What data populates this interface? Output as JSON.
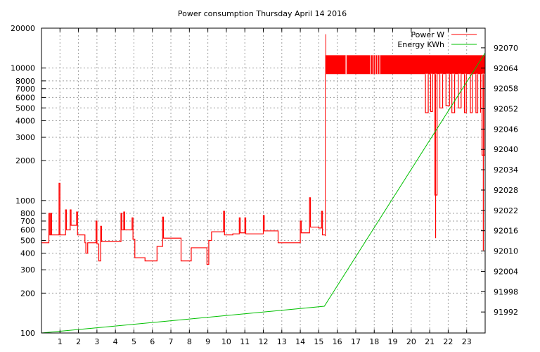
{
  "chart_data": {
    "type": "line",
    "title": "Power consumption Thursday April 14 2016",
    "xlabel": "",
    "ylabel": "",
    "xlim": [
      0,
      24
    ],
    "ylim": [
      100,
      20000
    ],
    "y_scale": "log",
    "y2lim": [
      91985.8,
      92075.8
    ],
    "grid": true,
    "legend_position": "top-right",
    "x_ticks": [
      "1",
      "2",
      "3",
      "4",
      "5",
      "6",
      "7",
      "8",
      "9",
      "10",
      "11",
      "12",
      "13",
      "14",
      "15",
      "16",
      "17",
      "18",
      "19",
      "20",
      "21",
      "22",
      "23"
    ],
    "y_ticks": [
      100,
      200,
      300,
      400,
      500,
      600,
      700,
      800,
      1000,
      2000,
      3000,
      4000,
      5000,
      6000,
      7000,
      8000,
      10000,
      20000
    ],
    "y_tick_labels": [
      "100",
      "200",
      "300",
      "400",
      "500",
      "600",
      "700",
      "800",
      "1000",
      "2000",
      "3000",
      "4000",
      "5000",
      "6000",
      "7000",
      "8000",
      "10000",
      "20000"
    ],
    "y2_ticks": [
      "91992",
      "91998",
      "92004",
      "92010",
      "92016",
      "92022",
      "92028",
      "92034",
      "92040",
      "92046",
      "92052",
      "92058",
      "92064",
      "92070"
    ],
    "series": [
      {
        "name": "Power W",
        "color": "#ff0000",
        "steps": [
          [
            0,
            480
          ],
          [
            0.4,
            800
          ],
          [
            0.45,
            550
          ],
          [
            0.5,
            800
          ],
          [
            0.55,
            550
          ],
          [
            0.95,
            1350
          ],
          [
            1.0,
            550
          ],
          [
            1.3,
            850
          ],
          [
            1.35,
            600
          ],
          [
            1.55,
            850
          ],
          [
            1.6,
            650
          ],
          [
            1.9,
            820
          ],
          [
            1.95,
            550
          ],
          [
            2.35,
            480
          ],
          [
            2.4,
            400
          ],
          [
            2.5,
            480
          ],
          [
            2.95,
            700
          ],
          [
            3.0,
            470
          ],
          [
            3.1,
            350
          ],
          [
            3.2,
            640
          ],
          [
            3.25,
            490
          ],
          [
            4.3,
            800
          ],
          [
            4.35,
            600
          ],
          [
            4.45,
            820
          ],
          [
            4.5,
            600
          ],
          [
            4.9,
            740
          ],
          [
            4.95,
            510
          ],
          [
            5.05,
            370
          ],
          [
            5.6,
            350
          ],
          [
            6.25,
            450
          ],
          [
            6.55,
            750
          ],
          [
            6.6,
            520
          ],
          [
            7.55,
            350
          ],
          [
            8.1,
            440
          ],
          [
            8.95,
            330
          ],
          [
            9.05,
            500
          ],
          [
            9.2,
            580
          ],
          [
            9.85,
            830
          ],
          [
            9.9,
            550
          ],
          [
            10.35,
            560
          ],
          [
            10.7,
            740
          ],
          [
            10.75,
            570
          ],
          [
            11.0,
            740
          ],
          [
            11.05,
            560
          ],
          [
            12.0,
            770
          ],
          [
            12.05,
            590
          ],
          [
            12.8,
            480
          ],
          [
            14.0,
            700
          ],
          [
            14.05,
            570
          ],
          [
            14.5,
            1050
          ],
          [
            14.55,
            630
          ],
          [
            15.0,
            620
          ],
          [
            15.15,
            830
          ],
          [
            15.2,
            550
          ],
          [
            15.35,
            540
          ]
        ],
        "band": {
          "start": 15.35,
          "end": 24,
          "low": 9000,
          "high": 12500,
          "spike_hour": 15.38,
          "spike_value": 18000
        },
        "band_gaps": [
          [
            16.45,
            16.5
          ],
          [
            17.78,
            17.82
          ],
          [
            17.92,
            17.96
          ],
          [
            18.04,
            18.08
          ],
          [
            18.16,
            18.2
          ],
          [
            18.28,
            18.32
          ]
        ],
        "dips": [
          [
            20.77,
            20.92,
            4600
          ],
          [
            21.05,
            21.15,
            4700
          ],
          [
            21.28,
            21.4,
            1100
          ],
          [
            21.55,
            21.7,
            5000
          ],
          [
            21.88,
            22.07,
            5200
          ],
          [
            22.2,
            22.35,
            4600
          ],
          [
            22.55,
            22.7,
            5000
          ],
          [
            22.88,
            22.98,
            4600
          ],
          [
            23.2,
            23.3,
            4600
          ],
          [
            23.5,
            23.6,
            4600
          ],
          [
            23.83,
            23.98,
            2200
          ]
        ],
        "min_spikes": [
          [
            21.32,
            520
          ],
          [
            23.9,
            420
          ]
        ]
      },
      {
        "name": "Energy KWh",
        "color": "#00c000",
        "axis": "y2",
        "points": [
          [
            0,
            91985.8
          ],
          [
            15.3,
            91993.7
          ],
          [
            24,
            92068.5
          ]
        ]
      }
    ]
  }
}
